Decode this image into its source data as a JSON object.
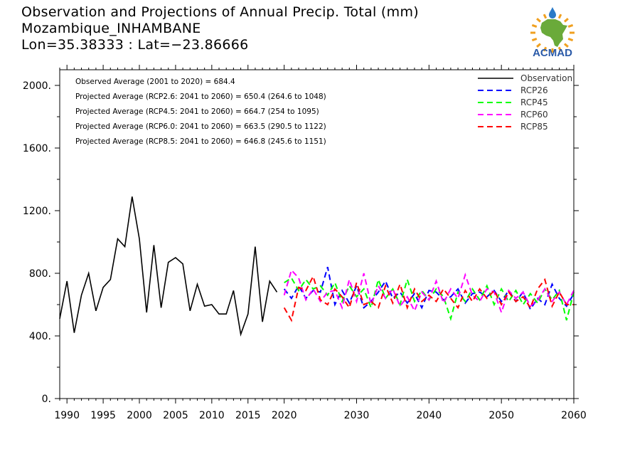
{
  "header": {
    "title_line1": "Observation and Projections of Annual Precip. Total (mm)",
    "title_line2": "Mozambique_INHAMBANE",
    "title_line3": "Lon=35.38333 : Lat=−23.86666"
  },
  "logo": {
    "text": "ACMAD",
    "icon": "africa-map-sun-icon",
    "text_color": "#2a5aa8",
    "map_color": "#6aaa3a",
    "sun_color": "#f0a020",
    "drop_color": "#2a7ac8"
  },
  "annotations": [
    "Observed Average (2001 to 2020) = 684.4",
    "Projected Average (RCP2.6: 2041 to 2060) = 650.4 (264.6 to 1048)",
    "Projected Average (RCP4.5: 2041 to 2060) = 664.7 (254 to 1095)",
    "Projected Average (RCP6.0: 2041 to 2060) = 663.5 (290.5 to 1122)",
    "Projected Average (RCP8.5: 2041 to 2060) = 646.8 (245.6 to 1151)"
  ],
  "chart_data": {
    "type": "line",
    "xlim": [
      1989,
      2060
    ],
    "ylim": [
      0,
      2100
    ],
    "x_ticks": [
      1990,
      1995,
      2000,
      2005,
      2010,
      2015,
      2020,
      2030,
      2040,
      2050,
      2060
    ],
    "y_ticks": [
      0,
      400,
      800,
      1200,
      1600,
      2000
    ],
    "y_tick_labels": [
      "0.",
      "400.",
      "800.",
      "1200.",
      "1600.",
      "2000."
    ],
    "legend": {
      "placement": "top-right"
    },
    "series": [
      {
        "name": "Observation",
        "color": "#000000",
        "dash": "solid",
        "x": [
          1989,
          1990,
          1991,
          1992,
          1993,
          1994,
          1995,
          1996,
          1997,
          1998,
          1999,
          2000,
          2001,
          2002,
          2003,
          2004,
          2005,
          2006,
          2007,
          2008,
          2009,
          2010,
          2011,
          2012,
          2013,
          2014,
          2015,
          2016,
          2017,
          2018,
          2019
        ],
        "y": [
          510,
          750,
          420,
          660,
          800,
          560,
          710,
          760,
          1020,
          970,
          1290,
          1020,
          550,
          980,
          580,
          870,
          900,
          860,
          560,
          730,
          590,
          600,
          540,
          540,
          690,
          410,
          540,
          970,
          490,
          750,
          680
        ]
      },
      {
        "name": "RCP26",
        "color": "#0000ff",
        "dash": "dashed",
        "x": [
          2020,
          2021,
          2022,
          2023,
          2024,
          2025,
          2026,
          2027,
          2028,
          2029,
          2030,
          2031,
          2032,
          2033,
          2034,
          2035,
          2036,
          2037,
          2038,
          2039,
          2040,
          2041,
          2042,
          2043,
          2044,
          2045,
          2046,
          2047,
          2048,
          2049,
          2050,
          2051,
          2052,
          2053,
          2054,
          2055,
          2056,
          2057,
          2058,
          2059,
          2060
        ],
        "y": [
          700,
          640,
          720,
          640,
          690,
          680,
          840,
          600,
          690,
          610,
          720,
          580,
          620,
          680,
          750,
          640,
          680,
          610,
          670,
          580,
          690,
          680,
          630,
          650,
          700,
          610,
          670,
          680,
          650,
          690,
          620,
          690,
          620,
          680,
          570,
          640,
          600,
          730,
          640,
          590,
          670
        ]
      },
      {
        "name": "RCP45",
        "color": "#00ff00",
        "dash": "dashed",
        "x": [
          2020,
          2021,
          2022,
          2023,
          2024,
          2025,
          2026,
          2027,
          2028,
          2029,
          2030,
          2031,
          2032,
          2033,
          2034,
          2035,
          2036,
          2037,
          2038,
          2039,
          2040,
          2041,
          2042,
          2043,
          2044,
          2045,
          2046,
          2047,
          2048,
          2049,
          2050,
          2051,
          2052,
          2053,
          2054,
          2055,
          2056,
          2057,
          2058,
          2059,
          2060
        ],
        "y": [
          740,
          770,
          690,
          760,
          700,
          720,
          660,
          740,
          620,
          720,
          650,
          700,
          580,
          760,
          640,
          700,
          600,
          760,
          620,
          690,
          630,
          700,
          650,
          510,
          680,
          620,
          700,
          630,
          720,
          600,
          700,
          620,
          690,
          600,
          670,
          610,
          700,
          630,
          690,
          500,
          680
        ]
      },
      {
        "name": "RCP60",
        "color": "#ff00ff",
        "dash": "dashed",
        "x": [
          2020,
          2021,
          2022,
          2023,
          2024,
          2025,
          2026,
          2027,
          2028,
          2029,
          2030,
          2031,
          2032,
          2033,
          2034,
          2035,
          2036,
          2037,
          2038,
          2039,
          2040,
          2041,
          2042,
          2043,
          2044,
          2045,
          2046,
          2047,
          2048,
          2049,
          2050,
          2051,
          2052,
          2053,
          2054,
          2055,
          2056,
          2057,
          2058,
          2059,
          2060
        ],
        "y": [
          660,
          820,
          770,
          630,
          700,
          620,
          680,
          690,
          580,
          760,
          620,
          800,
          600,
          720,
          640,
          700,
          590,
          650,
          560,
          680,
          630,
          750,
          610,
          700,
          640,
          790,
          660,
          620,
          700,
          680,
          550,
          690,
          640,
          680,
          590,
          630,
          700,
          620,
          680,
          600,
          690
        ]
      },
      {
        "name": "RCP85",
        "color": "#ff0000",
        "dash": "dashed",
        "x": [
          2020,
          2021,
          2022,
          2023,
          2024,
          2025,
          2026,
          2027,
          2028,
          2029,
          2030,
          2031,
          2032,
          2033,
          2034,
          2035,
          2036,
          2037,
          2038,
          2039,
          2040,
          2041,
          2042,
          2043,
          2044,
          2045,
          2046,
          2047,
          2048,
          2049,
          2050,
          2051,
          2052,
          2053,
          2054,
          2055,
          2056,
          2057,
          2058,
          2059,
          2060
        ],
        "y": [
          580,
          500,
          710,
          690,
          780,
          630,
          600,
          700,
          650,
          580,
          740,
          600,
          620,
          580,
          720,
          610,
          730,
          580,
          700,
          620,
          660,
          620,
          700,
          640,
          580,
          690,
          620,
          700,
          640,
          690,
          600,
          680,
          620,
          650,
          580,
          700,
          760,
          590,
          680,
          600,
          600
        ]
      }
    ]
  }
}
